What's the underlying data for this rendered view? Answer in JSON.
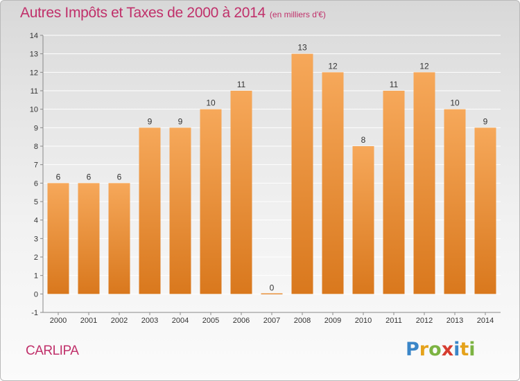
{
  "title": "Autres Impôts et Taxes de 2000 à 2014",
  "title_unit": "(en milliers d'€)",
  "commune": "CARLIPA",
  "logo": {
    "letters": [
      "P",
      "r",
      "o",
      "x",
      "i",
      "t",
      "i"
    ],
    "colors": [
      "#3a86c8",
      "#e5a21b",
      "#7cb342",
      "#d63c2f",
      "#3a86c8",
      "#e5a21b",
      "#7cb342"
    ]
  },
  "colors": {
    "bar_light": "#f6a85a",
    "bar_dark": "#d9781d",
    "title": "#c0306a",
    "grid": "#ffffff",
    "axis_text": "#333333"
  },
  "chart_data": {
    "type": "bar",
    "title": "Autres Impôts et Taxes de 2000 à 2014",
    "categories": [
      "2000",
      "2001",
      "2002",
      "2003",
      "2004",
      "2005",
      "2006",
      "2007",
      "2008",
      "2009",
      "2010",
      "2011",
      "2012",
      "2013",
      "2014"
    ],
    "values": [
      6,
      6,
      6,
      9,
      9,
      10,
      11,
      0,
      13,
      12,
      8,
      11,
      12,
      10,
      9
    ],
    "ylim": [
      -1,
      14
    ],
    "yticks": [
      -1,
      0,
      1,
      2,
      3,
      4,
      5,
      6,
      7,
      8,
      9,
      10,
      11,
      12,
      13,
      14
    ],
    "xlabel": "",
    "ylabel": "",
    "grid": true,
    "data_labels": true
  }
}
